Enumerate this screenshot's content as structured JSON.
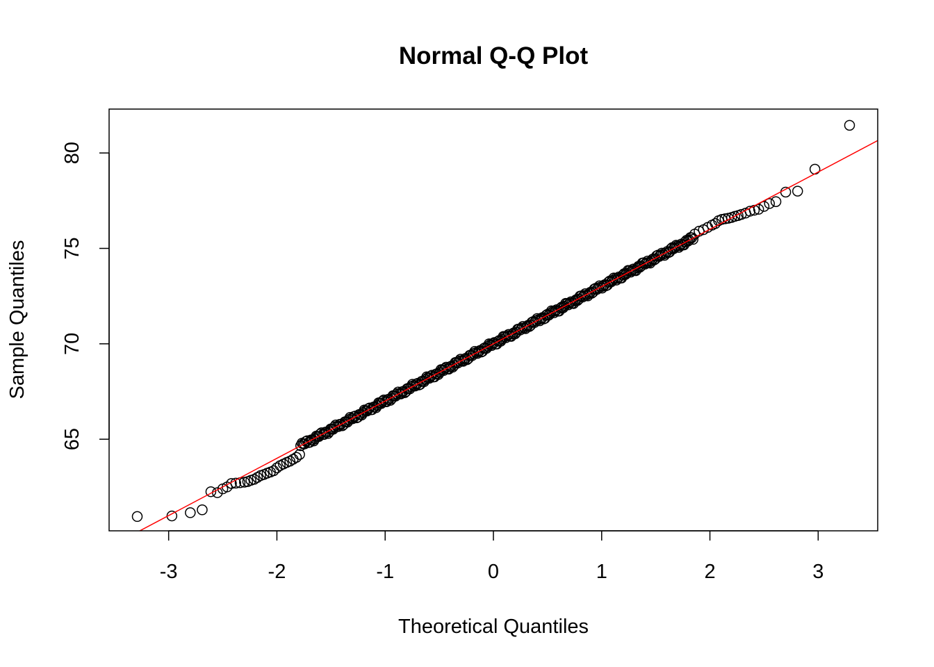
{
  "chart_data": {
    "type": "scatter",
    "title": "Normal Q-Q Plot",
    "xlabel": "Theoretical Quantiles",
    "ylabel": "Sample Quantiles",
    "xlim": [
      -3.55,
      3.55
    ],
    "ylim": [
      60.2,
      82.3
    ],
    "x_ticks": [
      -3,
      -2,
      -1,
      0,
      1,
      2,
      3
    ],
    "x_tick_labels": [
      "-3",
      "-2",
      "-1",
      "0",
      "1",
      "2",
      "3"
    ],
    "y_ticks": [
      65,
      70,
      75,
      80
    ],
    "y_tick_labels": [
      "65",
      "70",
      "75",
      "80"
    ],
    "grid": false,
    "colors": {
      "points": "#000000",
      "reference_line": "#ff0000"
    },
    "reference_line": {
      "intercept": 70.0,
      "slope": 3.0
    },
    "points": [
      [
        -3.29,
        60.95
      ],
      [
        -2.97,
        60.98
      ],
      [
        -2.8,
        61.15
      ],
      [
        -2.69,
        61.3
      ],
      [
        -2.61,
        62.25
      ],
      [
        -2.55,
        62.2
      ],
      [
        -2.5,
        62.4
      ],
      [
        -2.46,
        62.5
      ],
      [
        -2.42,
        62.68
      ],
      [
        -2.38,
        62.7
      ],
      [
        -2.34,
        62.72
      ],
      [
        -2.3,
        62.75
      ],
      [
        -2.27,
        62.78
      ],
      [
        -2.24,
        62.85
      ],
      [
        -2.21,
        62.9
      ],
      [
        -2.18,
        63.0
      ],
      [
        -2.15,
        63.1
      ],
      [
        -2.12,
        63.15
      ],
      [
        -2.09,
        63.22
      ],
      [
        -2.06,
        63.28
      ],
      [
        -2.03,
        63.35
      ],
      [
        -2.0,
        63.5
      ],
      [
        -1.97,
        63.62
      ],
      [
        -1.94,
        63.7
      ],
      [
        -1.91,
        63.78
      ],
      [
        -1.88,
        63.85
      ],
      [
        -1.85,
        63.95
      ],
      [
        -1.82,
        64.05
      ],
      [
        -1.79,
        64.2
      ]
    ],
    "bulk_range": [
      -1.78,
      1.85
    ],
    "upper_tail": [
      [
        1.86,
        75.75
      ],
      [
        1.9,
        75.9
      ],
      [
        1.94,
        75.98
      ],
      [
        1.98,
        76.1
      ],
      [
        2.02,
        76.22
      ],
      [
        2.05,
        76.3
      ],
      [
        2.08,
        76.45
      ],
      [
        2.11,
        76.52
      ],
      [
        2.14,
        76.55
      ],
      [
        2.17,
        76.58
      ],
      [
        2.2,
        76.62
      ],
      [
        2.23,
        76.68
      ],
      [
        2.26,
        76.72
      ],
      [
        2.29,
        76.78
      ],
      [
        2.33,
        76.85
      ],
      [
        2.37,
        76.95
      ],
      [
        2.41,
        77.0
      ],
      [
        2.45,
        77.05
      ],
      [
        2.5,
        77.2
      ],
      [
        2.55,
        77.35
      ],
      [
        2.61,
        77.45
      ],
      [
        2.7,
        77.95
      ],
      [
        2.81,
        78.0
      ],
      [
        2.97,
        79.15
      ],
      [
        3.29,
        81.45
      ]
    ]
  }
}
